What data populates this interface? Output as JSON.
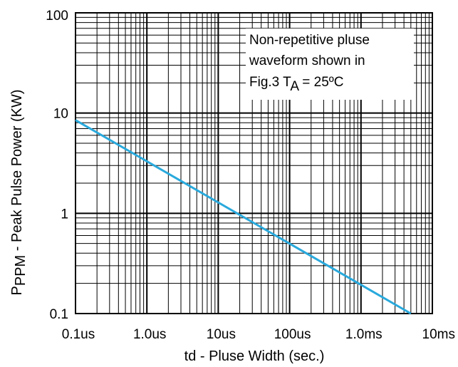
{
  "chart_data": {
    "type": "line",
    "title": "",
    "xlabel": "td - Pluse Width (sec.)",
    "ylabel": {
      "prefix": "P",
      "subscript": "PPM",
      "rest": " - Peak Pulse Power (KW)"
    },
    "x_scale": "log",
    "y_scale": "log",
    "xlim": [
      1e-07,
      0.01
    ],
    "ylim": [
      0.1,
      100
    ],
    "x_ticks": [
      {
        "value": 1e-07,
        "label": "0.1us"
      },
      {
        "value": 1e-06,
        "label": "1.0us"
      },
      {
        "value": 1e-05,
        "label": "10us"
      },
      {
        "value": 0.0001,
        "label": "100us"
      },
      {
        "value": 0.001,
        "label": "1.0ms"
      },
      {
        "value": 0.01,
        "label": "10ms"
      }
    ],
    "y_ticks": [
      {
        "value": 0.1,
        "label": "0.1"
      },
      {
        "value": 1,
        "label": "1"
      },
      {
        "value": 10,
        "label": "10"
      },
      {
        "value": 100,
        "label": "100"
      }
    ],
    "grid": true,
    "series": [
      {
        "color": "#29a9dc",
        "x": [
          1e-07,
          0.005
        ],
        "y": [
          8.5,
          0.1
        ]
      }
    ],
    "annotation": {
      "lines": [
        "Non-repetitive pluse",
        "waveform shown in"
      ],
      "line3_prefix": "Fig.3 T",
      "line3_subscript": "A",
      "line3_suffix": " = 25ºC"
    }
  }
}
